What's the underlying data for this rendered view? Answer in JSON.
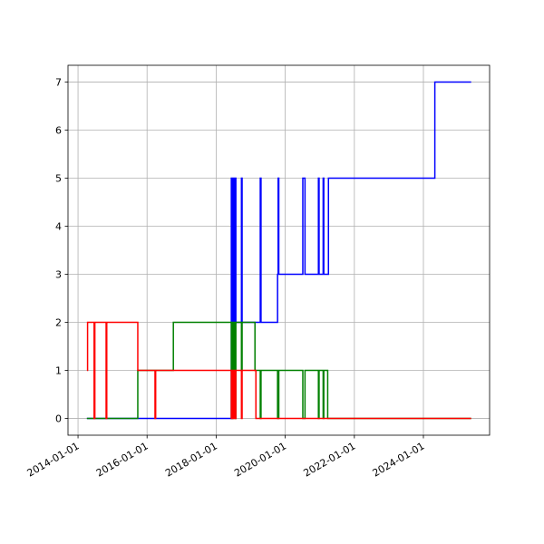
{
  "chart_data": {
    "type": "line",
    "drawstyle": "steps-post",
    "grid": true,
    "xlim": [
      "2013-09-17",
      "2025-12-01"
    ],
    "xticks": [
      "2014-01-01",
      "2016-01-01",
      "2018-01-01",
      "2020-01-01",
      "2022-01-01",
      "2024-01-01"
    ],
    "ylim": [
      -0.35,
      7.35
    ],
    "yticks": [
      0,
      1,
      2,
      3,
      4,
      5,
      6,
      7
    ],
    "series": [
      {
        "color": "#0000ff",
        "x": [
          "2014-04-05",
          "2018-06-10",
          "2018-06-20",
          "2018-07-01",
          "2018-07-10",
          "2018-07-20",
          "2018-07-28",
          "2018-09-25",
          "2018-10-02",
          "2019-04-12",
          "2019-04-20",
          "2019-10-12",
          "2019-10-18",
          "2019-10-25",
          "2020-07-05",
          "2020-07-28",
          "2020-12-17",
          "2020-12-24",
          "2021-02-05",
          "2021-02-12",
          "2021-04-02",
          "2024-05-01",
          "2025-05-20"
        ],
        "values": [
          0,
          5,
          0,
          5,
          2,
          5,
          2,
          5,
          2,
          5,
          2,
          3,
          5,
          3,
          5,
          3,
          5,
          3,
          5,
          3,
          5,
          7,
          7
        ]
      },
      {
        "color": "#008000",
        "x": [
          "2014-04-05",
          "2015-09-25",
          "2016-10-05",
          "2018-06-10",
          "2018-06-20",
          "2018-07-01",
          "2018-07-10",
          "2018-07-20",
          "2018-07-28",
          "2018-09-25",
          "2018-10-02",
          "2019-02-15",
          "2019-04-12",
          "2019-04-20",
          "2019-10-12",
          "2019-10-25",
          "2020-07-05",
          "2020-07-28",
          "2020-12-17",
          "2020-12-24",
          "2021-02-05",
          "2021-02-12",
          "2021-03-25",
          "2025-05-20"
        ],
        "values": [
          0,
          1,
          2,
          0,
          2,
          1,
          2,
          0,
          2,
          1,
          2,
          1,
          0,
          1,
          0,
          1,
          0,
          1,
          0,
          1,
          0,
          1,
          0,
          0
        ]
      },
      {
        "color": "#ff0000",
        "x": [
          "2014-04-05",
          "2014-04-12",
          "2014-06-20",
          "2014-06-28",
          "2014-10-25",
          "2014-11-01",
          "2015-09-25",
          "2016-03-25",
          "2016-04-01",
          "2018-06-10",
          "2018-06-20",
          "2018-07-01",
          "2018-07-10",
          "2018-07-20",
          "2018-07-28",
          "2018-09-25",
          "2018-10-02",
          "2019-02-25",
          "2025-05-20"
        ],
        "values": [
          1,
          2,
          0,
          2,
          0,
          2,
          1,
          0,
          1,
          0,
          1,
          0,
          1,
          0,
          1,
          0,
          1,
          0,
          0
        ]
      }
    ]
  }
}
